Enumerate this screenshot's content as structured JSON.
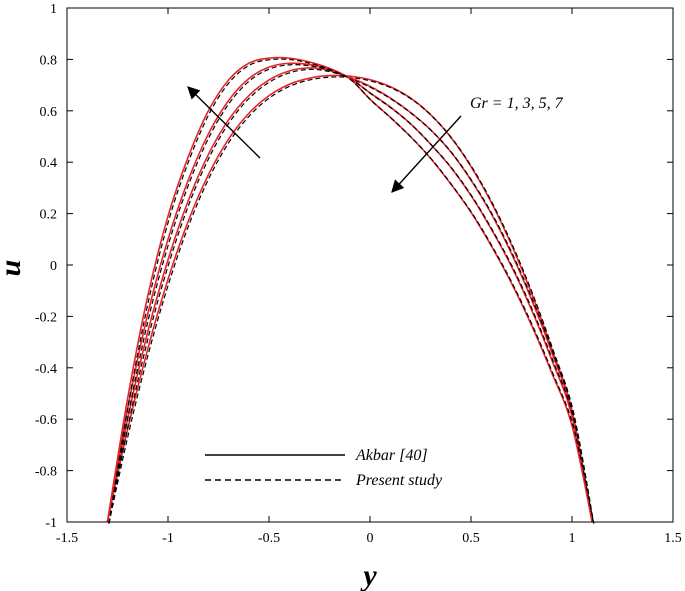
{
  "chart_data": {
    "type": "line",
    "title": "",
    "xlabel": "y",
    "ylabel": "u",
    "xlim": [
      -1.5,
      1.5
    ],
    "ylim": [
      -1,
      1
    ],
    "xticks": [
      -1.5,
      -1,
      -0.5,
      0,
      0.5,
      1,
      1.5
    ],
    "xtick_labels": [
      "-1.5",
      "-1",
      "-0.5",
      "0",
      "0.5",
      "1",
      "1.5"
    ],
    "yticks": [
      -1,
      -0.8,
      -0.6,
      -0.4,
      -0.2,
      0,
      0.2,
      0.4,
      0.6,
      0.8,
      1
    ],
    "ytick_labels": [
      "-1",
      "-0.8",
      "-0.6",
      "-0.4",
      "-0.2",
      "0",
      "0.2",
      "0.4",
      "0.6",
      "0.8",
      "1"
    ],
    "grid": false,
    "annotation": "Gr = 1, 3, 5, 7",
    "legend": {
      "position": "bottom-center",
      "entries": [
        {
          "label": "Akbar [40]",
          "style": "solid"
        },
        {
          "label": "Present study",
          "style": "dashed"
        }
      ]
    },
    "series": [
      {
        "name": "Gr = 1",
        "color": "#e8242b",
        "x": [
          -1.3,
          -1.2,
          -1.1,
          -1.0,
          -0.9,
          -0.8,
          -0.7,
          -0.6,
          -0.5,
          -0.4,
          -0.3,
          -0.2,
          -0.1,
          0.0,
          0.1,
          0.2,
          0.3,
          0.4,
          0.5,
          0.6,
          0.7,
          0.8,
          0.9,
          1.0,
          1.1
        ],
        "y": [
          -1.0,
          -0.64,
          -0.326,
          -0.056,
          0.17,
          0.351,
          0.49,
          0.59,
          0.659,
          0.703,
          0.727,
          0.737,
          0.735,
          0.721,
          0.694,
          0.65,
          0.585,
          0.497,
          0.383,
          0.244,
          0.079,
          -0.111,
          -0.327,
          -0.567,
          -1.0
        ]
      },
      {
        "name": "Gr = 3",
        "color": "#e8242b",
        "x": [
          -1.3,
          -1.2,
          -1.1,
          -1.0,
          -0.9,
          -0.8,
          -0.7,
          -0.6,
          -0.5,
          -0.4,
          -0.3,
          -0.2,
          -0.1,
          0.0,
          0.1,
          0.2,
          0.3,
          0.4,
          0.5,
          0.6,
          0.7,
          0.8,
          0.9,
          1.0,
          1.1
        ],
        "y": [
          -1.0,
          -0.6,
          -0.26,
          0.02,
          0.25,
          0.43,
          0.565,
          0.659,
          0.72,
          0.755,
          0.767,
          0.757,
          0.73,
          0.695,
          0.65,
          0.594,
          0.526,
          0.44,
          0.33,
          0.2,
          0.045,
          -0.135,
          -0.34,
          -0.575,
          -1.0
        ]
      },
      {
        "name": "Gr = 5",
        "color": "#e8242b",
        "x": [
          -1.3,
          -1.2,
          -1.1,
          -1.0,
          -0.9,
          -0.8,
          -0.7,
          -0.6,
          -0.5,
          -0.4,
          -0.3,
          -0.2,
          -0.1,
          0.0,
          0.1,
          0.2,
          0.3,
          0.4,
          0.5,
          0.6,
          0.7,
          0.8,
          0.9,
          1.0,
          1.1
        ],
        "y": [
          -1.0,
          -0.56,
          -0.19,
          0.1,
          0.33,
          0.51,
          0.64,
          0.725,
          0.77,
          0.785,
          0.78,
          0.762,
          0.728,
          0.67,
          0.615,
          0.55,
          0.47,
          0.38,
          0.27,
          0.14,
          -0.005,
          -0.175,
          -0.37,
          -0.59,
          -1.0
        ]
      },
      {
        "name": "Gr = 7",
        "color": "#e8242b",
        "x": [
          -1.3,
          -1.2,
          -1.1,
          -1.0,
          -0.9,
          -0.8,
          -0.7,
          -0.6,
          -0.5,
          -0.4,
          -0.3,
          -0.2,
          -0.1,
          0.0,
          0.1,
          0.2,
          0.3,
          0.4,
          0.5,
          0.6,
          0.7,
          0.8,
          0.9,
          1.0,
          1.1
        ],
        "y": [
          -1.0,
          -0.52,
          -0.12,
          0.19,
          0.42,
          0.6,
          0.72,
          0.785,
          0.805,
          0.805,
          0.79,
          0.765,
          0.725,
          0.645,
          0.575,
          0.5,
          0.415,
          0.315,
          0.205,
          0.075,
          -0.07,
          -0.235,
          -0.42,
          -0.625,
          -1.0
        ]
      }
    ]
  }
}
